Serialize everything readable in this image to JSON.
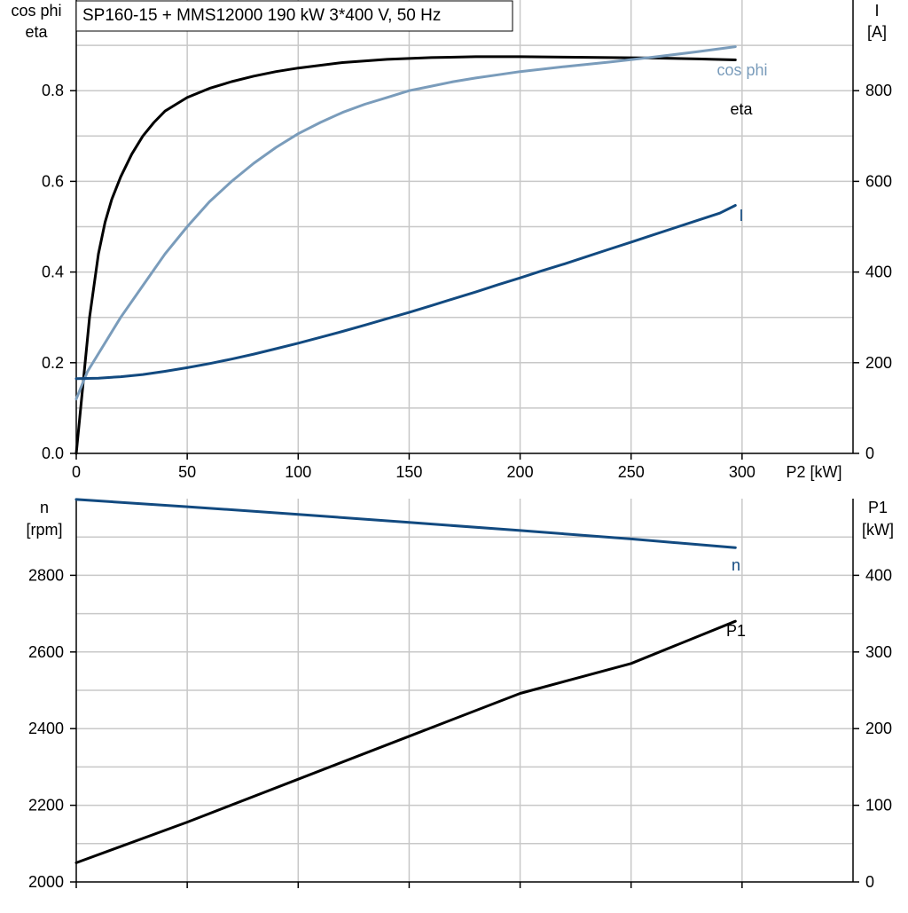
{
  "title": "SP160-15 + MMS12000   190 kW   3*400 V, 50 Hz",
  "colors": {
    "grid": "#c8c8c8",
    "axis": "#000000",
    "eta": "#000000",
    "cos_phi": "#7a9cbb",
    "current": "#124a80",
    "speed": "#124a80",
    "p1": "#000000"
  },
  "chart_data": [
    {
      "type": "line",
      "name": "top",
      "xlabel": "P2 [kW]",
      "ylabel_left": [
        "cos phi",
        "eta"
      ],
      "ylabel_right": [
        "I",
        "[A]"
      ],
      "xlim": [
        0,
        350
      ],
      "ylim_left": [
        0,
        1.0
      ],
      "ylim_right": [
        0,
        1000
      ],
      "xticks": [
        0,
        50,
        100,
        150,
        200,
        250,
        300
      ],
      "xtick_labels": [
        "0",
        "50",
        "100",
        "150",
        "200",
        "250",
        "300"
      ],
      "left_ticks": [
        0.0,
        0.2,
        0.4,
        0.6,
        0.8
      ],
      "left_tick_labels": [
        "0.0",
        "0.2",
        "0.4",
        "0.6",
        "0.8"
      ],
      "right_ticks": [
        0,
        200,
        400,
        600,
        800
      ],
      "right_tick_labels": [
        "0",
        "200",
        "400",
        "600",
        "800"
      ],
      "grid": true,
      "series": [
        {
          "name": "eta",
          "axis": "left",
          "color_key": "eta",
          "x": [
            0,
            2,
            4,
            6,
            8,
            10,
            13,
            16,
            20,
            25,
            30,
            35,
            40,
            45,
            50,
            60,
            70,
            80,
            90,
            100,
            120,
            140,
            160,
            180,
            200,
            220,
            240,
            260,
            280,
            297
          ],
          "y": [
            0,
            0.1,
            0.2,
            0.3,
            0.37,
            0.44,
            0.51,
            0.56,
            0.61,
            0.66,
            0.7,
            0.73,
            0.755,
            0.77,
            0.785,
            0.805,
            0.82,
            0.832,
            0.842,
            0.85,
            0.862,
            0.869,
            0.873,
            0.875,
            0.875,
            0.874,
            0.873,
            0.872,
            0.87,
            0.868
          ]
        },
        {
          "name": "cos phi",
          "axis": "left",
          "color_key": "cos_phi",
          "x": [
            0,
            5,
            10,
            20,
            30,
            40,
            50,
            60,
            70,
            80,
            90,
            100,
            110,
            120,
            130,
            140,
            150,
            160,
            170,
            180,
            190,
            200,
            220,
            240,
            260,
            280,
            297
          ],
          "y": [
            0.12,
            0.18,
            0.22,
            0.3,
            0.37,
            0.44,
            0.5,
            0.555,
            0.6,
            0.64,
            0.675,
            0.705,
            0.73,
            0.752,
            0.77,
            0.785,
            0.8,
            0.81,
            0.82,
            0.828,
            0.835,
            0.842,
            0.853,
            0.863,
            0.874,
            0.886,
            0.897
          ]
        },
        {
          "name": "I",
          "axis": "right",
          "color_key": "current",
          "x": [
            0,
            10,
            20,
            30,
            40,
            50,
            60,
            70,
            80,
            90,
            100,
            110,
            120,
            130,
            140,
            150,
            160,
            170,
            180,
            190,
            200,
            210,
            220,
            230,
            240,
            250,
            260,
            270,
            280,
            290,
            297
          ],
          "y": [
            165,
            166,
            169,
            174,
            181,
            189,
            198,
            208,
            219,
            231,
            243,
            256,
            269,
            283,
            297,
            311,
            326,
            341,
            356,
            372,
            387,
            403,
            418,
            434,
            450,
            466,
            482,
            498,
            514,
            530,
            547
          ]
        }
      ]
    },
    {
      "type": "line",
      "name": "bottom",
      "xlabel": "",
      "ylabel_left": [
        "n",
        "[rpm]"
      ],
      "ylabel_right": [
        "P1",
        "[kW]"
      ],
      "xlim": [
        0,
        350
      ],
      "ylim_left": [
        2000,
        3000
      ],
      "ylim_right": [
        0,
        500
      ],
      "xticks": [
        0,
        50,
        100,
        150,
        200,
        250,
        300
      ],
      "left_ticks": [
        2000,
        2200,
        2400,
        2600,
        2800
      ],
      "left_tick_labels": [
        "2000",
        "2200",
        "2400",
        "2600",
        "2800"
      ],
      "right_ticks": [
        0,
        100,
        200,
        300,
        400
      ],
      "right_tick_labels": [
        "0",
        "100",
        "200",
        "300",
        "400"
      ],
      "grid": true,
      "series": [
        {
          "name": "n",
          "axis": "left",
          "color_key": "speed",
          "x": [
            0,
            50,
            100,
            150,
            200,
            250,
            297
          ],
          "y": [
            2998,
            2979,
            2959,
            2938,
            2917,
            2895,
            2872
          ]
        },
        {
          "name": "P1",
          "axis": "right",
          "color_key": "p1",
          "x": [
            0,
            50,
            100,
            150,
            200,
            250,
            297
          ],
          "y": [
            25,
            78,
            134,
            190,
            246,
            285,
            340
          ]
        }
      ]
    }
  ]
}
